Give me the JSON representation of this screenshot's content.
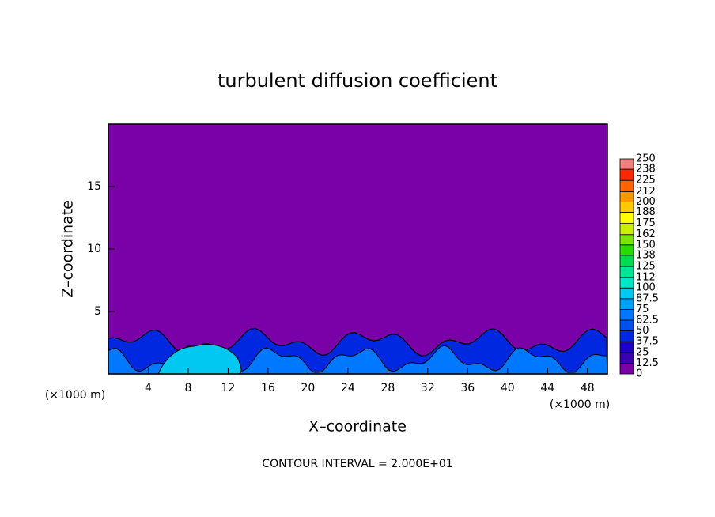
{
  "chart_data": {
    "type": "contour",
    "title": "turbulent diffusion coefficient",
    "x_label": "X–coordinate",
    "y_label": "Z–coordinate",
    "x_unit": "(×1000 m)",
    "y_unit": "(×1000 m)",
    "footnote": "CONTOUR INTERVAL = 2.000E+01",
    "xlim": [
      0,
      50
    ],
    "xticks": [
      4,
      8,
      12,
      16,
      20,
      24,
      28,
      32,
      36,
      40,
      44,
      48
    ],
    "ylim": [
      0,
      20
    ],
    "yticks": [
      5,
      10,
      15
    ],
    "colorbar": {
      "levels": [
        0,
        12.5,
        25,
        37.5,
        50,
        62.5,
        75,
        87.5,
        100,
        112,
        125,
        138,
        150,
        162,
        175,
        188,
        200,
        212,
        225,
        238,
        250
      ],
      "colors": [
        "#7a00a8",
        "#3c00b4",
        "#1e00c8",
        "#0028e0",
        "#0050f0",
        "#0078ff",
        "#00a0ff",
        "#00c8f0",
        "#00e6c8",
        "#00e696",
        "#00dc50",
        "#28dc00",
        "#78e600",
        "#c8f000",
        "#ffff00",
        "#ffc800",
        "#ff9600",
        "#ff6400",
        "#ff2800",
        "#f08080"
      ]
    }
  }
}
